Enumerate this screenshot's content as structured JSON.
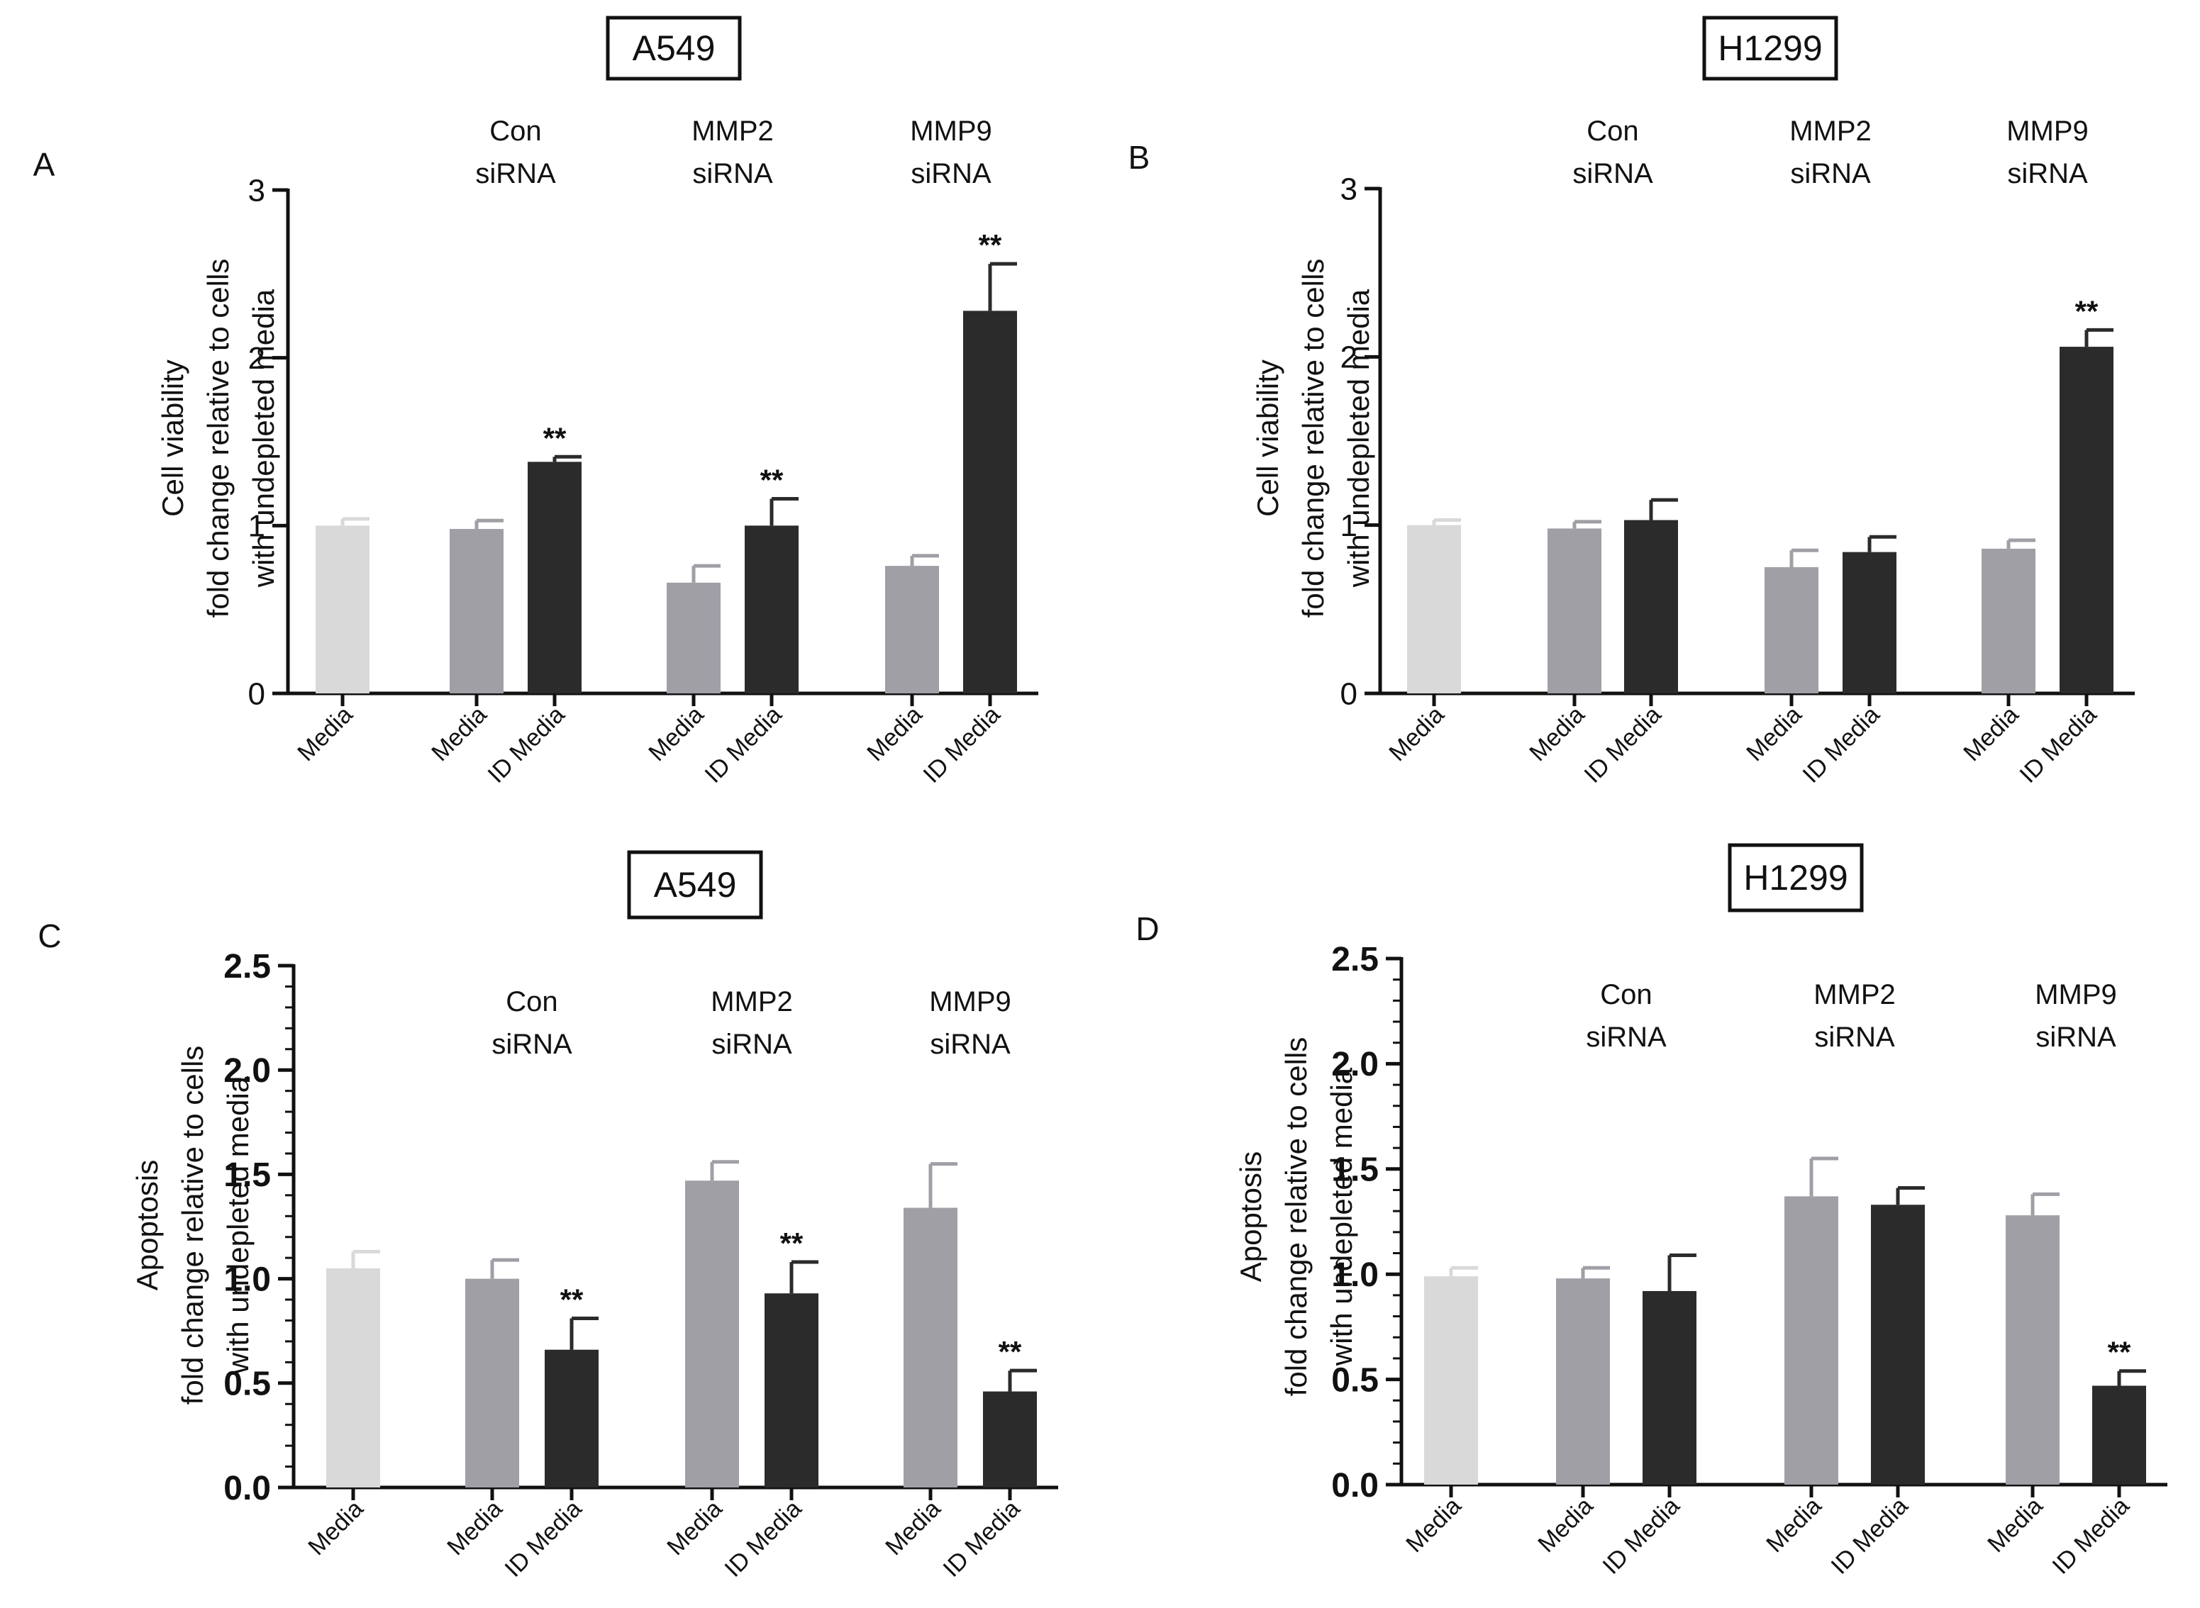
{
  "colors": {
    "media_light": "#d9d9d9",
    "media_grey": "#a19fa6",
    "id_media_dark": "#2b2b2b",
    "axis": "#111111"
  },
  "chart_data": [
    {
      "panel": "A",
      "type": "bar",
      "title": "A549",
      "ylabel": [
        "Cell viability",
        "fold change relative to cells",
        "with undepleted media"
      ],
      "ylim": [
        0,
        3
      ],
      "yticks": [
        "0",
        "1",
        "2",
        "3"
      ],
      "ytick_values": [
        0,
        1,
        2,
        3
      ],
      "minor_ticks": false,
      "groups": [
        {
          "label": [
            "",
            ""
          ],
          "bars": [
            {
              "category": "Media",
              "value": 1.0,
              "error": 0.04,
              "color": "media_light",
              "significance": ""
            }
          ]
        },
        {
          "label": [
            "Con",
            "siRNA"
          ],
          "bars": [
            {
              "category": "Media",
              "value": 0.98,
              "error": 0.05,
              "color": "media_grey",
              "significance": ""
            },
            {
              "category": "ID Media",
              "value": 1.38,
              "error": 0.03,
              "color": "id_media_dark",
              "significance": "**"
            }
          ]
        },
        {
          "label": [
            "MMP2",
            "siRNA"
          ],
          "bars": [
            {
              "category": "Media",
              "value": 0.66,
              "error": 0.1,
              "color": "media_grey",
              "significance": ""
            },
            {
              "category": "ID Media",
              "value": 1.0,
              "error": 0.16,
              "color": "id_media_dark",
              "significance": "**"
            }
          ]
        },
        {
          "label": [
            "MMP9",
            "siRNA"
          ],
          "bars": [
            {
              "category": "Media",
              "value": 0.76,
              "error": 0.06,
              "color": "media_grey",
              "significance": ""
            },
            {
              "category": "ID Media",
              "value": 2.28,
              "error": 0.28,
              "color": "id_media_dark",
              "significance": "**"
            }
          ]
        }
      ]
    },
    {
      "panel": "B",
      "type": "bar",
      "title": "H1299",
      "ylabel": [
        "Cell viability",
        "fold change relative to cells",
        "with undepleted media"
      ],
      "ylim": [
        0,
        3
      ],
      "yticks": [
        "0",
        "1",
        "2",
        "3"
      ],
      "ytick_values": [
        0,
        1,
        2,
        3
      ],
      "minor_ticks": false,
      "groups": [
        {
          "label": [
            "",
            ""
          ],
          "bars": [
            {
              "category": "Media",
              "value": 1.0,
              "error": 0.03,
              "color": "media_light",
              "significance": ""
            }
          ]
        },
        {
          "label": [
            "Con",
            "siRNA"
          ],
          "bars": [
            {
              "category": "Media",
              "value": 0.98,
              "error": 0.04,
              "color": "media_grey",
              "significance": ""
            },
            {
              "category": "ID Media",
              "value": 1.03,
              "error": 0.12,
              "color": "id_media_dark",
              "significance": ""
            }
          ]
        },
        {
          "label": [
            "MMP2",
            "siRNA"
          ],
          "bars": [
            {
              "category": "Media",
              "value": 0.75,
              "error": 0.1,
              "color": "media_grey",
              "significance": ""
            },
            {
              "category": "ID Media",
              "value": 0.84,
              "error": 0.09,
              "color": "id_media_dark",
              "significance": ""
            }
          ]
        },
        {
          "label": [
            "MMP9",
            "siRNA"
          ],
          "bars": [
            {
              "category": "Media",
              "value": 0.86,
              "error": 0.05,
              "color": "media_grey",
              "significance": ""
            },
            {
              "category": "ID Media",
              "value": 2.06,
              "error": 0.1,
              "color": "id_media_dark",
              "significance": "**"
            }
          ]
        }
      ]
    },
    {
      "panel": "C",
      "type": "bar",
      "title": "A549",
      "ylabel": [
        "Apoptosis",
        "fold change relative to cells",
        "with undepleted media"
      ],
      "ylim": [
        0,
        2.5
      ],
      "yticks": [
        "0.0",
        "0.5",
        "1.0",
        "1.5",
        "2.0",
        "2.5"
      ],
      "ytick_values": [
        0,
        0.5,
        1.0,
        1.5,
        2.0,
        2.5
      ],
      "minor_ticks": true,
      "groups": [
        {
          "label": [
            "",
            ""
          ],
          "bars": [
            {
              "category": "Media",
              "value": 1.05,
              "error": 0.08,
              "color": "media_light",
              "significance": ""
            }
          ]
        },
        {
          "label": [
            "Con",
            "siRNA"
          ],
          "bars": [
            {
              "category": "Media",
              "value": 1.0,
              "error": 0.09,
              "color": "media_grey",
              "significance": ""
            },
            {
              "category": "ID Media",
              "value": 0.66,
              "error": 0.15,
              "color": "id_media_dark",
              "significance": "**"
            }
          ]
        },
        {
          "label": [
            "MMP2",
            "siRNA"
          ],
          "bars": [
            {
              "category": "Media",
              "value": 1.47,
              "error": 0.09,
              "color": "media_grey",
              "significance": ""
            },
            {
              "category": "ID Media",
              "value": 0.93,
              "error": 0.15,
              "color": "id_media_dark",
              "significance": "**"
            }
          ]
        },
        {
          "label": [
            "MMP9",
            "siRNA"
          ],
          "bars": [
            {
              "category": "Media",
              "value": 1.34,
              "error": 0.21,
              "color": "media_grey",
              "significance": ""
            },
            {
              "category": "ID Media",
              "value": 0.46,
              "error": 0.1,
              "color": "id_media_dark",
              "significance": "**"
            }
          ]
        }
      ]
    },
    {
      "panel": "D",
      "type": "bar",
      "title": "H1299",
      "ylabel": [
        "Apoptosis",
        "fold change relative to cells",
        "with undepleted media"
      ],
      "ylim": [
        0,
        2.5
      ],
      "yticks": [
        "0.0",
        "0.5",
        "1.0",
        "1.5",
        "2.0",
        "2.5"
      ],
      "ytick_values": [
        0,
        0.5,
        1.0,
        1.5,
        2.0,
        2.5
      ],
      "minor_ticks": true,
      "groups": [
        {
          "label": [
            "",
            ""
          ],
          "bars": [
            {
              "category": "Media",
              "value": 0.99,
              "error": 0.04,
              "color": "media_light",
              "significance": ""
            }
          ]
        },
        {
          "label": [
            "Con",
            "siRNA"
          ],
          "bars": [
            {
              "category": "Media",
              "value": 0.98,
              "error": 0.05,
              "color": "media_grey",
              "significance": ""
            },
            {
              "category": "ID Media",
              "value": 0.92,
              "error": 0.17,
              "color": "id_media_dark",
              "significance": ""
            }
          ]
        },
        {
          "label": [
            "MMP2",
            "siRNA"
          ],
          "bars": [
            {
              "category": "Media",
              "value": 1.37,
              "error": 0.18,
              "color": "media_grey",
              "significance": ""
            },
            {
              "category": "ID Media",
              "value": 1.33,
              "error": 0.08,
              "color": "id_media_dark",
              "significance": ""
            }
          ]
        },
        {
          "label": [
            "MMP9",
            "siRNA"
          ],
          "bars": [
            {
              "category": "Media",
              "value": 1.28,
              "error": 0.1,
              "color": "media_grey",
              "significance": ""
            },
            {
              "category": "ID Media",
              "value": 0.47,
              "error": 0.07,
              "color": "id_media_dark",
              "significance": "**"
            }
          ]
        }
      ]
    }
  ]
}
